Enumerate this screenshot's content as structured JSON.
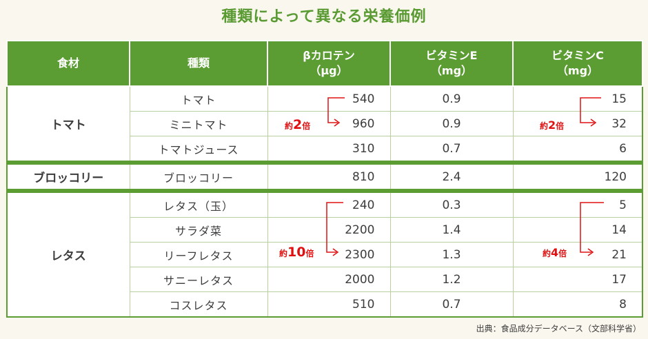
{
  "title": "種類によって異なる栄養価例",
  "headers": {
    "food": "食材",
    "variety": "種類",
    "beta_carotene": [
      "βカロテン",
      "（μg）"
    ],
    "vitamin_e": [
      "ビタミンE",
      "（mg）"
    ],
    "vitamin_c": [
      "ビタミンC",
      "（mg）"
    ]
  },
  "groups": [
    {
      "food": "トマト",
      "rows": [
        {
          "variety": "トマト",
          "beta": "540",
          "e": "0.9",
          "c": "15"
        },
        {
          "variety": "ミニトマト",
          "beta": "960",
          "e": "0.9",
          "c": "32"
        },
        {
          "variety": "トマトジュース",
          "beta": "310",
          "e": "0.7",
          "c": "6"
        }
      ]
    },
    {
      "food": "ブロッコリー",
      "rows": [
        {
          "variety": "ブロッコリー",
          "beta": "810",
          "e": "2.4",
          "c": "120"
        }
      ]
    },
    {
      "food": "レタス",
      "rows": [
        {
          "variety": "レタス（玉）",
          "beta": "240",
          "e": "0.3",
          "c": "5"
        },
        {
          "variety": "サラダ菜",
          "beta": "2200",
          "e": "1.4",
          "c": "14"
        },
        {
          "variety": "リーフレタス",
          "beta": "2300",
          "e": "1.3",
          "c": "21"
        },
        {
          "variety": "サニーレタス",
          "beta": "2000",
          "e": "1.2",
          "c": "17"
        },
        {
          "variety": "コスレタス",
          "beta": "510",
          "e": "0.7",
          "c": "8"
        }
      ]
    }
  ],
  "annotations": {
    "tomato_beta": {
      "prefix": "約",
      "num": "2",
      "suffix": "倍"
    },
    "tomato_c": {
      "prefix": "約",
      "num": "2",
      "suffix": "倍"
    },
    "lettuce_beta": {
      "prefix": "約",
      "num": "10",
      "suffix": "倍"
    },
    "lettuce_c": {
      "prefix": "約",
      "num": "4",
      "suffix": "倍"
    }
  },
  "source": "出典：食品成分データベース（文部科学省）",
  "colors": {
    "header_green": "#5b9c33",
    "title_green": "#5a9a32",
    "annotation_red": "#e01010"
  }
}
